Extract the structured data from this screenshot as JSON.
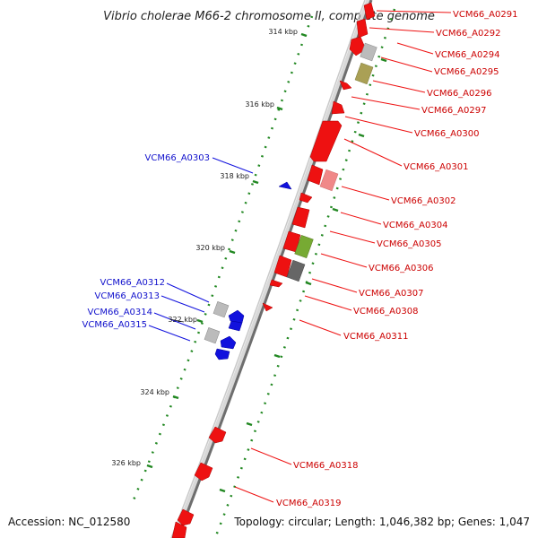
{
  "title": "Vibrio cholerae M66-2 chromosome II, complete genome",
  "footer": {
    "accession": "Accession: NC_012580",
    "topology": "Topology: circular; Length: 1,046,382 bp; Genes: 1,047"
  },
  "colors": {
    "forward": "#ee1111",
    "reverse": "#1111dd",
    "backbone": "#8a8a8a",
    "tick": "#228822",
    "pseudo_gray": "#aaaaaa",
    "olive": "#999944",
    "green": "#77aa33",
    "dark_gray": "#555555"
  },
  "ticks": [
    "314 kbp",
    "316 kbp",
    "318 kbp",
    "320 kbp",
    "322 kbp",
    "324 kbp",
    "326 kbp"
  ],
  "forward_labels": [
    "VCM66_A0291",
    "VCM66_A0292",
    "VCM66_A0294",
    "VCM66_A0295",
    "VCM66_A0296",
    "VCM66_A0297",
    "VCM66_A0300",
    "VCM66_A0301",
    "VCM66_A0302",
    "VCM66_A0304",
    "VCM66_A0305",
    "VCM66_A0306",
    "VCM66_A0307",
    "VCM66_A0308",
    "VCM66_A0311",
    "VCM66_A0318",
    "VCM66_A0319"
  ],
  "reverse_labels": [
    "VCM66_A0303",
    "VCM66_A0312",
    "VCM66_A0313",
    "VCM66_A0314",
    "VCM66_A0315"
  ]
}
